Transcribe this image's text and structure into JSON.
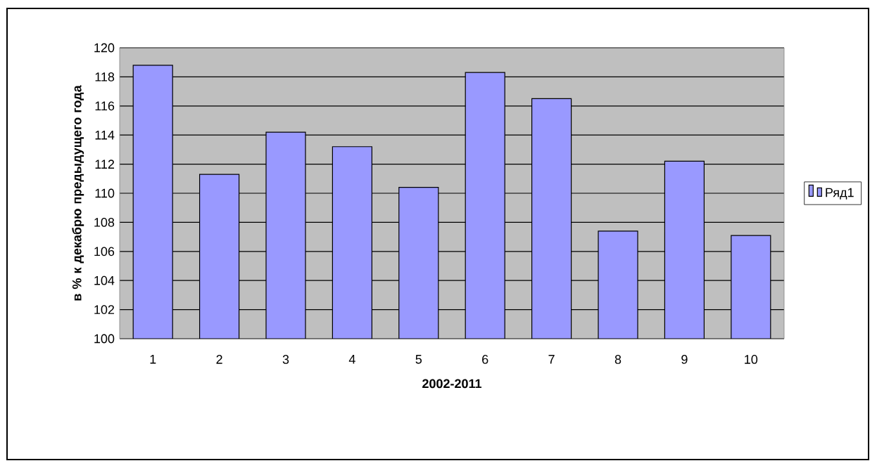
{
  "chart_data": {
    "type": "bar",
    "xlabel": "2002-2011",
    "ylabel": "в % к декабрю предыдущего года",
    "categories": [
      "1",
      "2",
      "3",
      "4",
      "5",
      "6",
      "7",
      "8",
      "9",
      "10"
    ],
    "series": [
      {
        "name": "Ряд1",
        "color": "#9999ff",
        "values": [
          118.8,
          111.3,
          114.2,
          113.2,
          110.4,
          118.3,
          116.5,
          107.4,
          112.2,
          107.1
        ]
      }
    ],
    "ylim": [
      100,
      120
    ],
    "yticks": [
      100,
      102,
      104,
      106,
      108,
      110,
      112,
      114,
      116,
      118,
      120
    ],
    "grid": "y",
    "legend": "right"
  }
}
